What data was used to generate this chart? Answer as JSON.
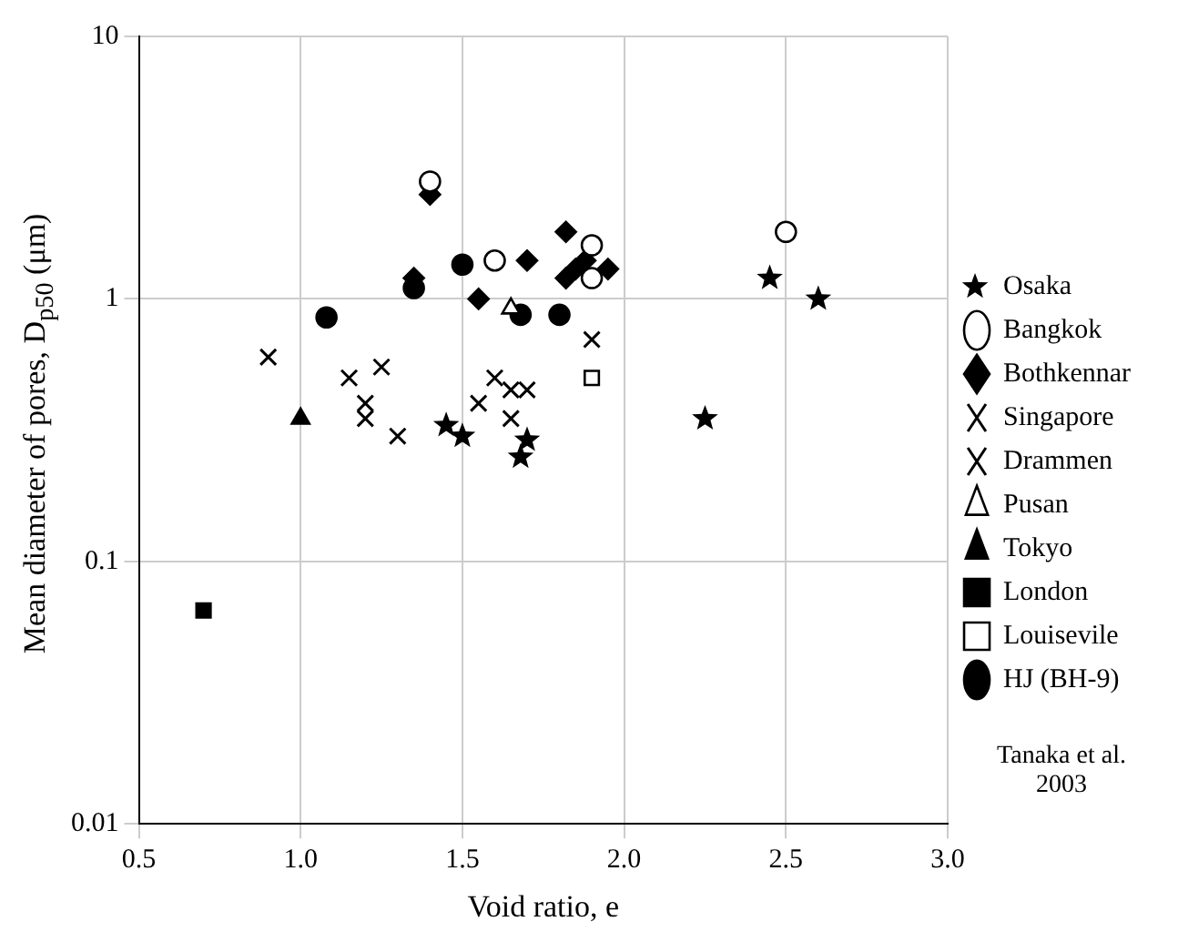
{
  "chart_data": {
    "type": "scatter",
    "xlabel": "Void ratio, e",
    "ylabel": "Mean diameter of pores, D$_{p50}$ (μm)",
    "annotations": [
      "Tanaka et al. 2003"
    ],
    "xlim": [
      0.5,
      3.0
    ],
    "xticks": [
      {
        "value": 0.5,
        "label": "0.5"
      },
      {
        "value": 1,
        "label": "1.0"
      },
      {
        "value": 1.5,
        "label": "1.5"
      },
      {
        "value": 2,
        "label": "2.0"
      },
      {
        "value": 2.5,
        "label": "2.5"
      },
      {
        "value": 3,
        "label": "3.0"
      }
    ],
    "ylim": [
      0.01,
      10
    ],
    "yticks": [
      0.01,
      0.1,
      1,
      10
    ],
    "log": "y",
    "grid": true,
    "legend": "right",
    "series": [
      {
        "name": "Osaka",
        "color": "#000000",
        "marker": "star",
        "x": [
          1.45,
          1.5,
          1.68,
          1.7,
          2.25,
          2.45,
          2.6
        ],
        "values": [
          0.33,
          0.3,
          0.25,
          0.29,
          0.35,
          1.2,
          1.0
        ]
      },
      {
        "name": "Bangkok",
        "color": "#ffffff",
        "marker": "circle",
        "x": [
          1.4,
          1.6,
          1.9,
          1.9,
          2.5
        ],
        "values": [
          2.8,
          1.4,
          1.6,
          1.2,
          1.8
        ]
      },
      {
        "name": "Bothkennar",
        "color": "#000000",
        "marker": "diamond",
        "x": [
          1.35,
          1.4,
          1.55,
          1.7,
          1.82,
          1.82,
          1.85,
          1.88,
          1.95
        ],
        "values": [
          1.2,
          2.5,
          1.0,
          1.4,
          1.8,
          1.2,
          1.3,
          1.4,
          1.3
        ]
      },
      {
        "name": "Singapore",
        "color": "#000000",
        "marker": "cross",
        "x": [
          1.2,
          1.3,
          1.55,
          1.6,
          1.65,
          1.65,
          1.7,
          1.9
        ],
        "values": [
          0.35,
          0.3,
          0.4,
          0.5,
          0.45,
          0.35,
          0.45,
          0.7
        ]
      },
      {
        "name": "Drammen",
        "color": "#000000",
        "marker": "cross",
        "x": [
          0.9,
          1.15,
          1.2,
          1.25
        ],
        "values": [
          0.6,
          0.5,
          0.4,
          0.55
        ]
      },
      {
        "name": "Pusan",
        "color": "#ffffff",
        "marker": "triangle",
        "x": [
          1.65
        ],
        "values": [
          0.92
        ]
      },
      {
        "name": "Tokyo",
        "color": "#000000",
        "marker": "triangle",
        "x": [
          1.0
        ],
        "values": [
          0.35
        ]
      },
      {
        "name": "London",
        "color": "#000000",
        "marker": "square",
        "x": [
          0.7
        ],
        "values": [
          0.065
        ]
      },
      {
        "name": "Louisevile",
        "color": "#ffffff",
        "marker": "square",
        "x": [
          1.9
        ],
        "values": [
          0.5
        ]
      },
      {
        "name": "HJ (BH-9)",
        "color": "#000000",
        "marker": "circle",
        "x": [
          1.08,
          1.35,
          1.5,
          1.68,
          1.8
        ],
        "values": [
          0.85,
          1.1,
          1.35,
          0.87,
          0.87
        ]
      }
    ]
  }
}
